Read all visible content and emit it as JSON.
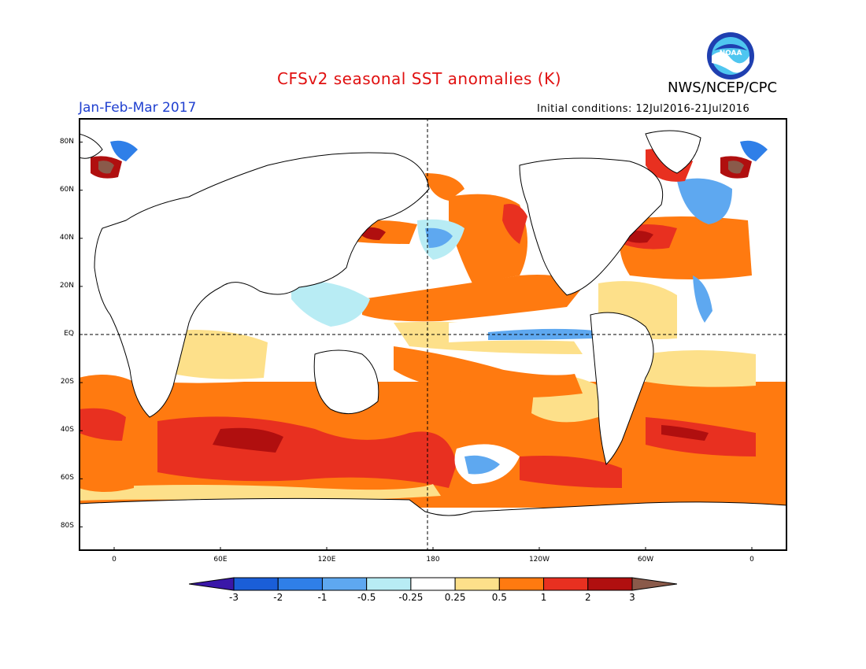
{
  "header": {
    "title": "CFSv2 seasonal SST anomalies (K)",
    "season": "Jan-Feb-Mar 2017",
    "agency": "NWS/NCEP/CPC",
    "initial_conditions": "Initial conditions: 12Jul2016-21Jul2016",
    "logo_text": "NOAA"
  },
  "map": {
    "lat_labels": [
      "80N",
      "60N",
      "40N",
      "20N",
      "EQ",
      "20S",
      "40S",
      "60S",
      "80S"
    ],
    "lon_labels": [
      "0",
      "60E",
      "120E",
      "180",
      "120W",
      "60W",
      "0"
    ],
    "lon_range": [
      -20,
      380
    ],
    "lat_range": [
      -90,
      90
    ],
    "reference_lines": [
      "equator",
      "dateline"
    ]
  },
  "colorbar": {
    "labels": [
      "-3",
      "-2",
      "-1",
      "-0.5",
      "-0.25",
      "0.25",
      "0.5",
      "1",
      "2",
      "3"
    ],
    "colors": [
      "#3a17a8",
      "#1a5ed8",
      "#2f7fe8",
      "#5ea8f0",
      "#b8ecf4",
      "#ffffff",
      "#fde08a",
      "#ff7a10",
      "#e83020",
      "#b00f0f",
      "#8a5a4a"
    ]
  }
}
